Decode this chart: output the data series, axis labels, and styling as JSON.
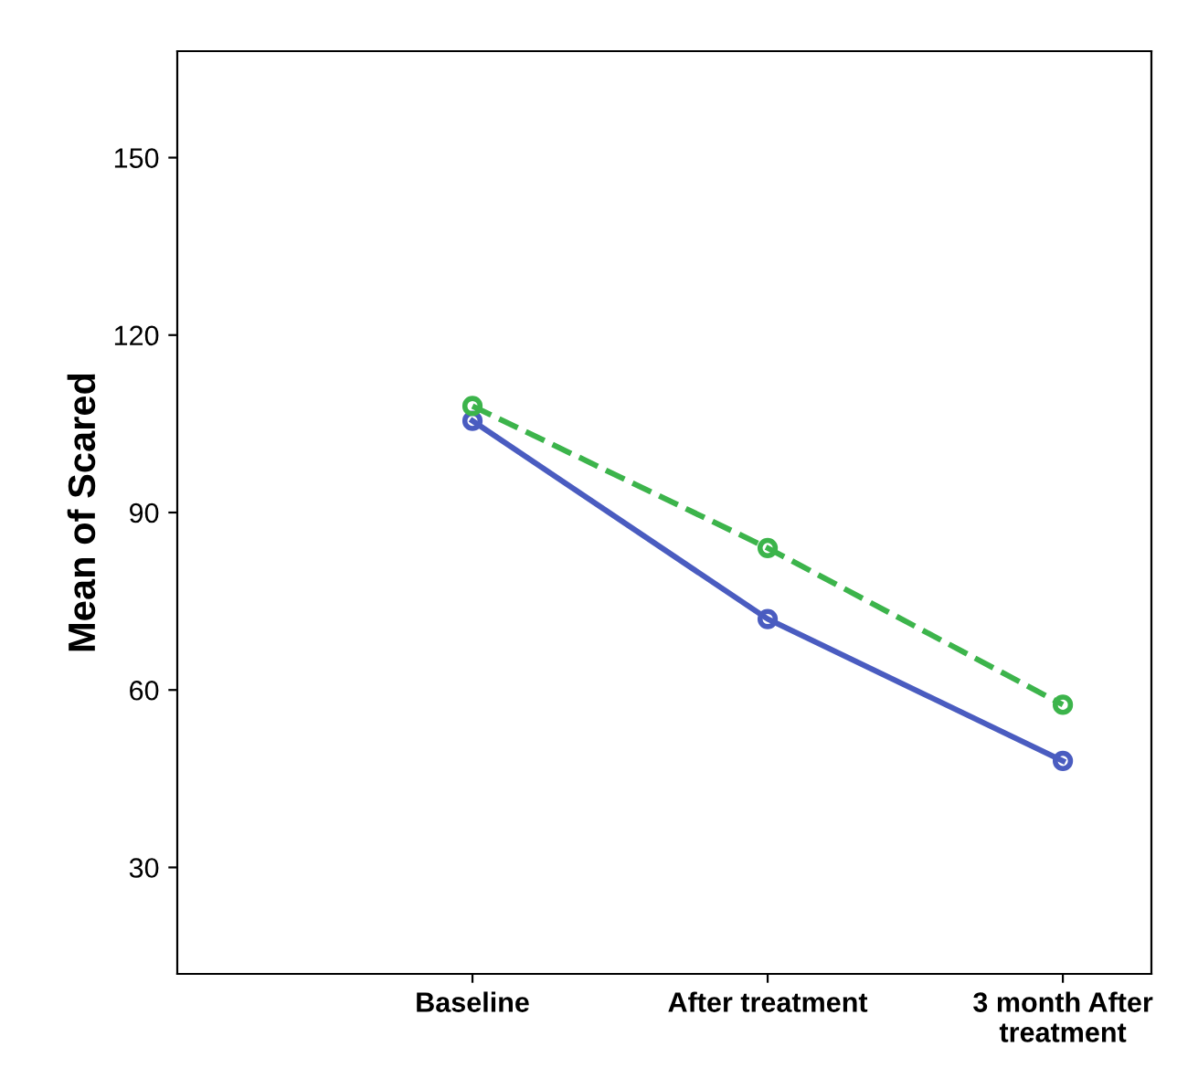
{
  "chart_data": {
    "type": "line",
    "ylabel": "Mean of Scared",
    "categories": [
      "Baseline",
      "After treatment",
      "3 month After\ntreatment"
    ],
    "series": [
      {
        "color": "#4a5cc0",
        "values": [
          105.5,
          72,
          48
        ],
        "line_style": "solid"
      },
      {
        "color": "#3cb44b",
        "values": [
          108,
          84,
          57.5
        ],
        "line_style": "dashed"
      }
    ],
    "ylim": [
      12,
      168
    ],
    "yticks": [
      30,
      60,
      90,
      120,
      150
    ],
    "marker": "circle",
    "grid": false,
    "legend": false
  }
}
